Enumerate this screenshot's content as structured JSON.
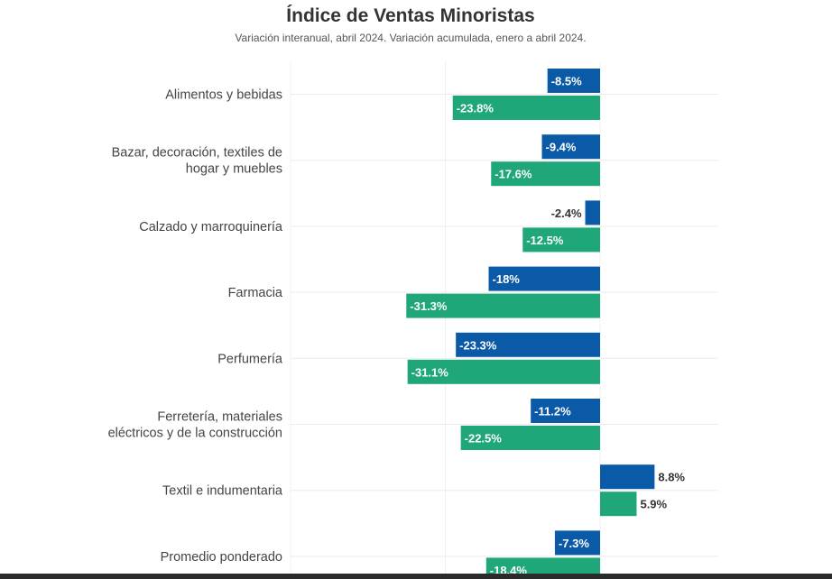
{
  "chart_data": {
    "type": "bar",
    "orientation": "horizontal",
    "title": "Índice de Ventas Minoristas",
    "subtitle": "Variación interanual, abril 2024. Variación acumulada, enero a abril 2024.",
    "categories": [
      "Alimentos y bebidas",
      "Bazar, decoración, textiles de hogar y muebles",
      "Calzado y marroquinería",
      "Farmacia",
      "Perfumería",
      "Ferretería, materiales eléctricos y de la construcción",
      "Textil e indumentaria",
      "Promedio ponderado"
    ],
    "category_lines": [
      [
        "Alimentos y bebidas"
      ],
      [
        "Bazar, decoración, textiles de",
        "hogar y muebles"
      ],
      [
        "Calzado y marroquinería"
      ],
      [
        "Farmacia"
      ],
      [
        "Perfumería"
      ],
      [
        "Ferretería, materiales",
        "eléctricos y de la construcción"
      ],
      [
        "Textil e indumentaria"
      ],
      [
        "Promedio ponderado"
      ]
    ],
    "series": [
      {
        "color": "#0b5aa8",
        "values": [
          -8.5,
          -9.4,
          -2.4,
          -18,
          -23.3,
          -11.2,
          8.8,
          -7.3
        ],
        "labels": [
          "-8.5%",
          "-9.4%",
          "-2.4%",
          "-18%",
          "-23.3%",
          "-11.2%",
          "8.8%",
          "-7.3%"
        ]
      },
      {
        "color": "#1fa779",
        "values": [
          -23.8,
          -17.6,
          -12.5,
          -31.3,
          -31.1,
          -22.5,
          5.9,
          -18.4
        ],
        "labels": [
          "-23.8%",
          "-17.6%",
          "-12.5%",
          "-31.3%",
          "-31.1%",
          "-22.5%",
          "5.9%",
          "-18.4%"
        ]
      }
    ],
    "xlim": [
      -50,
      20
    ],
    "grid": true,
    "legend": "none"
  }
}
